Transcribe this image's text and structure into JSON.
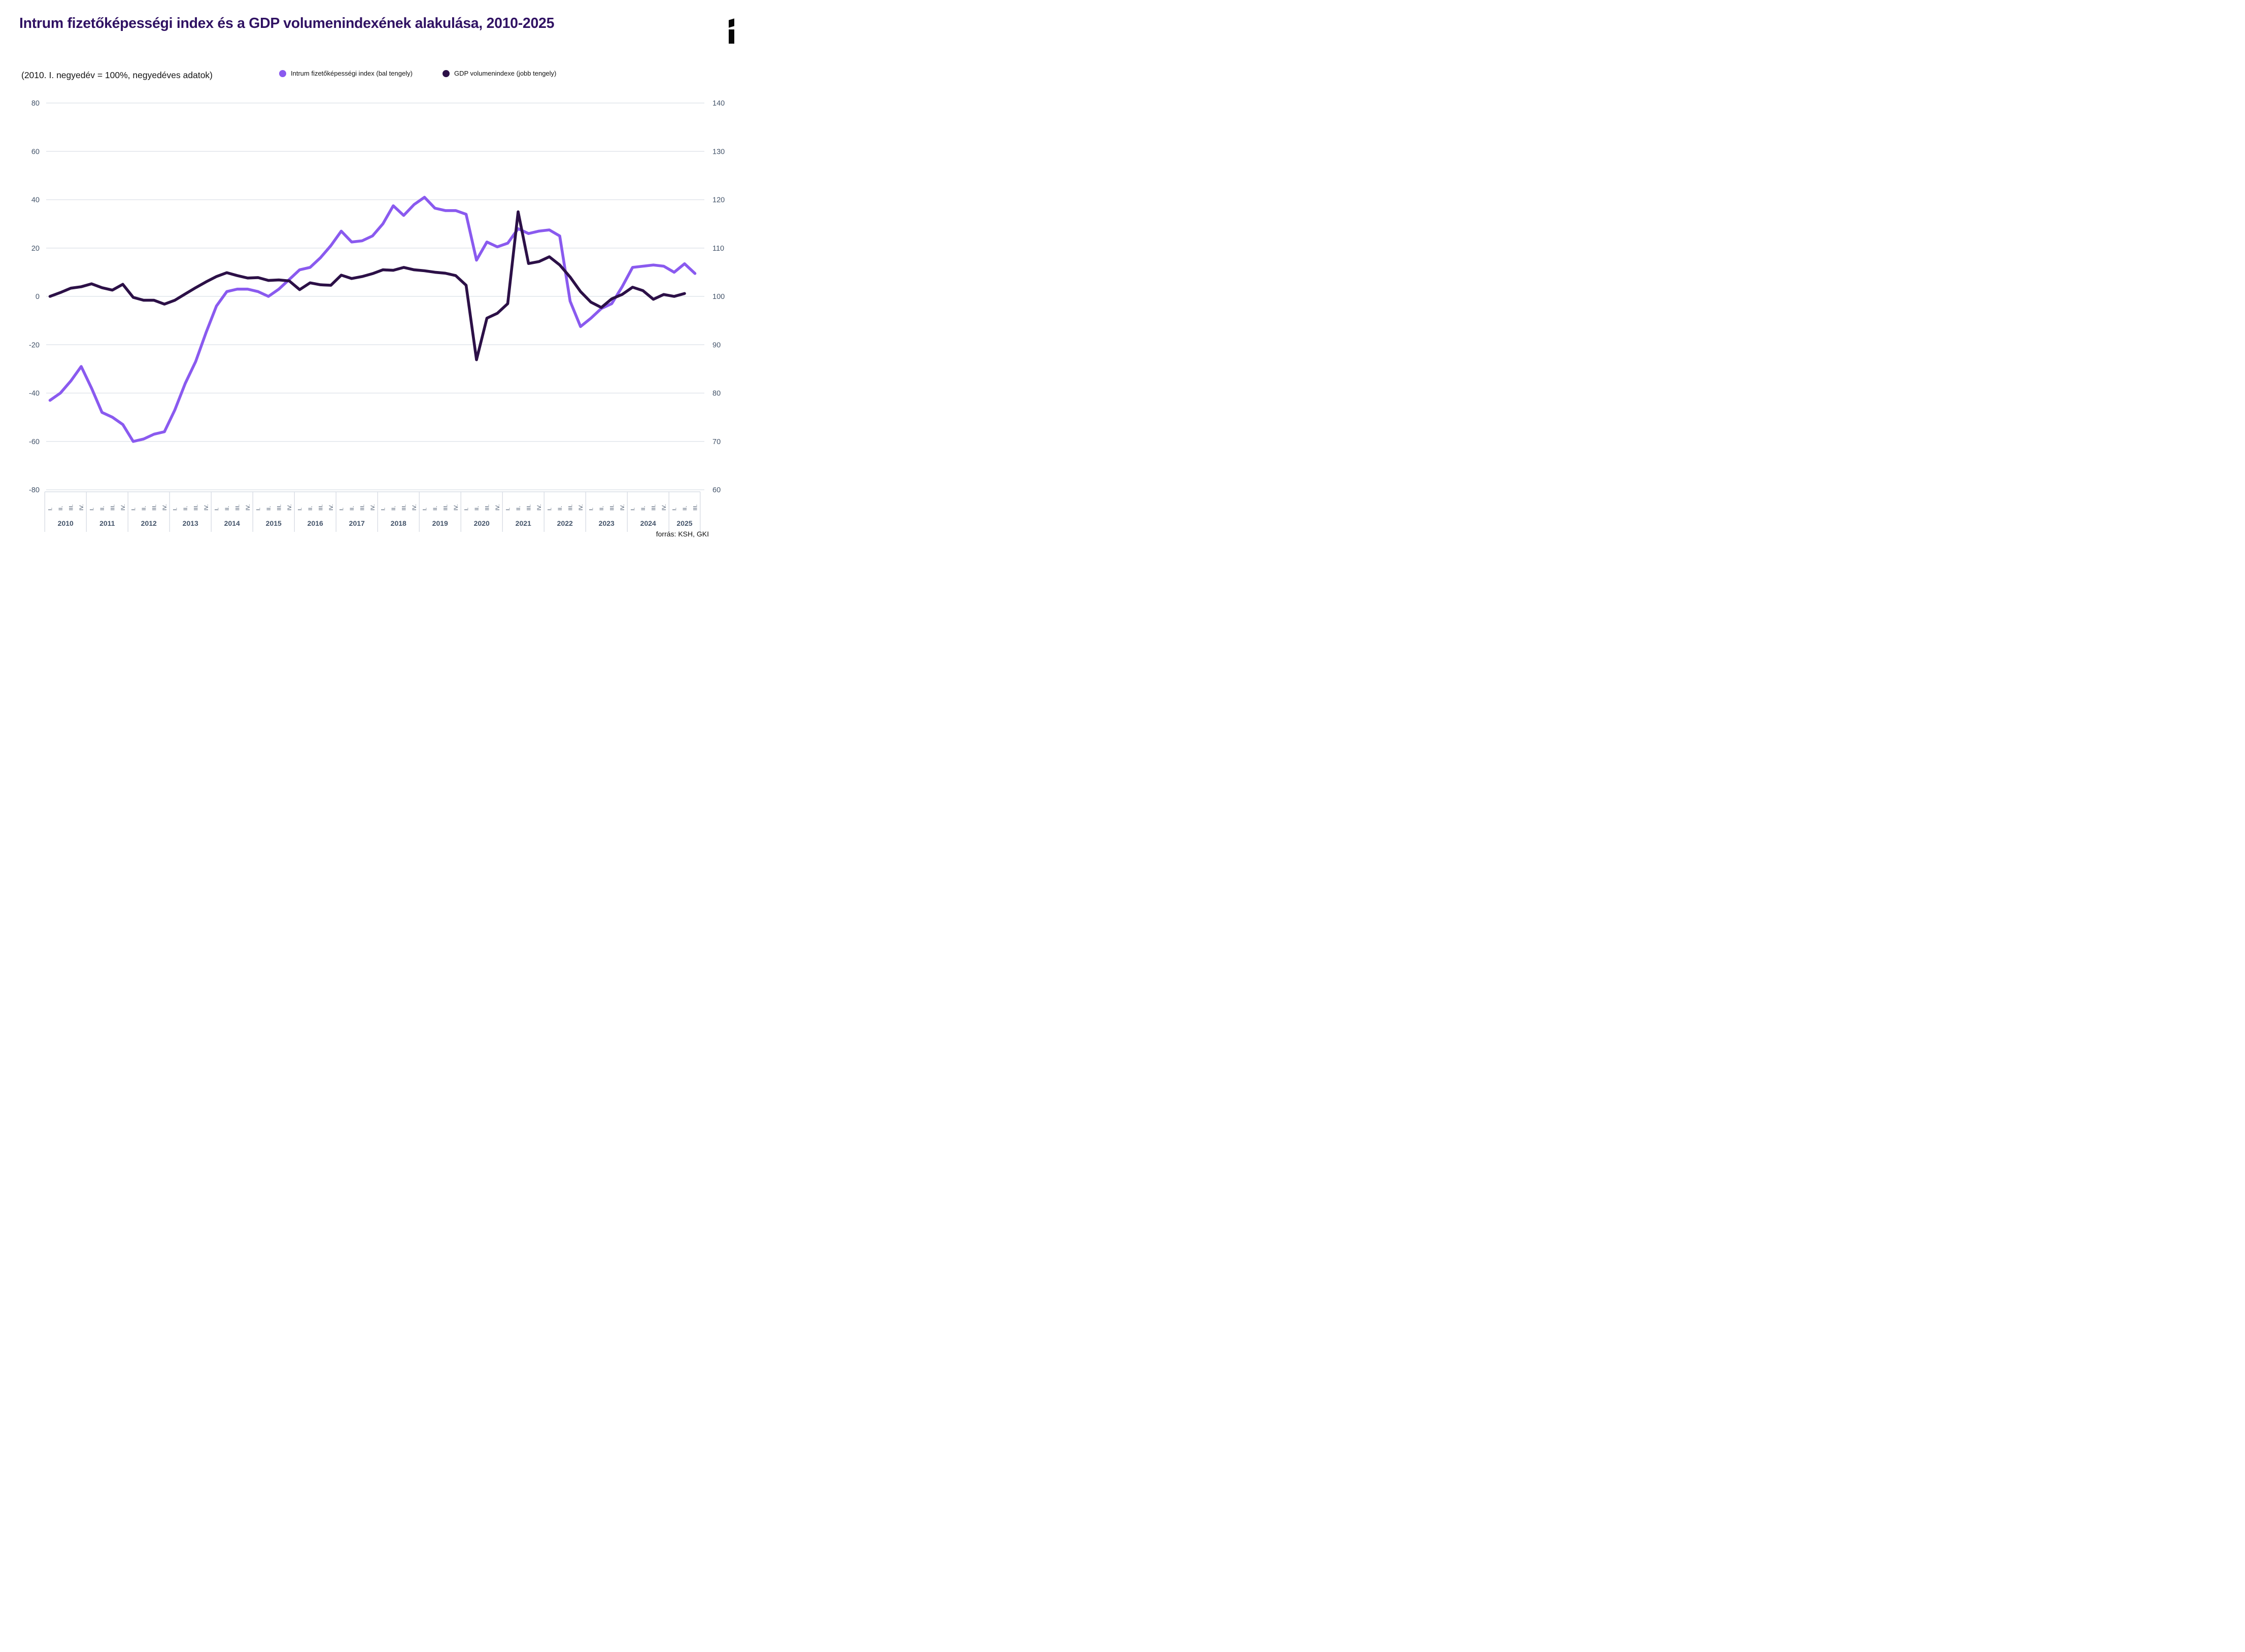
{
  "header": {
    "title": "Intrum fizetőképességi index és a GDP volumenindexének alakulása, 2010-2025",
    "subtitle": "(2010. I. negyedév = 100%, negyedéves adatok)"
  },
  "legend": [
    {
      "label": "Intrum fizetőképességi index (bal tengely)",
      "color": "#8A5AEF"
    },
    {
      "label": "GDP volumenindexe (jobb tengely)",
      "color": "#2C1047"
    }
  ],
  "source": "forrás: KSH, GKI",
  "logo": {
    "name": "intrum-logo",
    "color": "#070707"
  },
  "colors": {
    "title": "#301263",
    "axis_text": "#44546A",
    "gridline": "#E1E5EB",
    "axis_strip_line": "#D8DDE5"
  },
  "chart_data": {
    "type": "line",
    "title": "Intrum fizetőképességi index és a GDP volumenindexének alakulása, 2010-2025",
    "subtitle": "(2010. I. negyedév = 100%, negyedéves adatok)",
    "grid": true,
    "legend_position": "top",
    "left_axis": {
      "min": -80,
      "max": 80,
      "ticks": [
        80,
        60,
        40,
        20,
        0,
        -20,
        -40,
        -60,
        -80
      ]
    },
    "right_axis": {
      "min": 60,
      "max": 140,
      "ticks": [
        140,
        130,
        120,
        110,
        100,
        90,
        80,
        70,
        60
      ]
    },
    "years": [
      {
        "year": "2010",
        "quarters": [
          "I.",
          "II.",
          "III.",
          "IV."
        ]
      },
      {
        "year": "2011",
        "quarters": [
          "I.",
          "II.",
          "III.",
          "IV."
        ]
      },
      {
        "year": "2012",
        "quarters": [
          "I.",
          "II.",
          "III.",
          "IV."
        ]
      },
      {
        "year": "2013",
        "quarters": [
          "I.",
          "II.",
          "III.",
          "IV."
        ]
      },
      {
        "year": "2014",
        "quarters": [
          "I.",
          "II.",
          "III.",
          "IV."
        ]
      },
      {
        "year": "2015",
        "quarters": [
          "I.",
          "II.",
          "III.",
          "IV."
        ]
      },
      {
        "year": "2016",
        "quarters": [
          "I.",
          "II.",
          "III.",
          "IV."
        ]
      },
      {
        "year": "2017",
        "quarters": [
          "I.",
          "II.",
          "III.",
          "IV."
        ]
      },
      {
        "year": "2018",
        "quarters": [
          "I.",
          "II.",
          "III.",
          "IV."
        ]
      },
      {
        "year": "2019",
        "quarters": [
          "I.",
          "II.",
          "III.",
          "IV."
        ]
      },
      {
        "year": "2020",
        "quarters": [
          "I.",
          "II.",
          "III.",
          "IV."
        ]
      },
      {
        "year": "2021",
        "quarters": [
          "I.",
          "II.",
          "III.",
          "IV."
        ]
      },
      {
        "year": "2022",
        "quarters": [
          "I.",
          "II.",
          "III.",
          "IV."
        ]
      },
      {
        "year": "2023",
        "quarters": [
          "I.",
          "II.",
          "III.",
          "IV."
        ]
      },
      {
        "year": "2024",
        "quarters": [
          "I.",
          "II.",
          "III.",
          "IV."
        ]
      },
      {
        "year": "2025",
        "quarters": [
          "I.",
          "II.",
          "III."
        ]
      }
    ],
    "series": [
      {
        "name": "Intrum fizetőképességi index (bal tengely)",
        "axis": "left",
        "color": "#8A5AEF",
        "values": [
          -43,
          -40,
          -35,
          -29,
          -38,
          -48,
          -50,
          -53,
          -60,
          -59,
          -57,
          -56,
          -47,
          -36,
          -27,
          -15,
          -4,
          2,
          3,
          3,
          2,
          0,
          3,
          7,
          11,
          12,
          16,
          21,
          27,
          22.5,
          23,
          25,
          30,
          37.5,
          33.5,
          38,
          41,
          36.5,
          35.5,
          35.5,
          34,
          15,
          22.5,
          20.5,
          22,
          28,
          26,
          27,
          27.5,
          25,
          -2,
          -12.5,
          -9,
          -5,
          -3,
          4,
          12,
          12.5,
          13,
          12.5,
          10,
          13.5,
          9.5
        ]
      },
      {
        "name": "GDP volumenindexe (jobb tengely)",
        "axis": "right",
        "color": "#2C1047",
        "values": [
          100,
          100.8,
          101.7,
          102,
          102.6,
          101.8,
          101.3,
          102.5,
          99.8,
          99.2,
          99.2,
          98.4,
          99.2,
          100.5,
          101.8,
          103,
          104.1,
          104.9,
          104.3,
          103.8,
          103.9,
          103.3,
          103.4,
          103.2,
          101.4,
          102.8,
          102.4,
          102.3,
          104.4,
          103.7,
          104.1,
          104.7,
          105.5,
          105.4,
          106,
          105.5,
          105.3,
          105,
          104.8,
          104.3,
          102.3,
          86.9,
          95.5,
          96.5,
          98.5,
          117.5,
          106.8,
          107.2,
          108.2,
          106.5,
          104,
          101,
          98.8,
          97.7,
          99.5,
          100.4,
          101.9,
          101.2,
          99.4,
          100.4,
          100,
          100.6
        ]
      }
    ]
  }
}
